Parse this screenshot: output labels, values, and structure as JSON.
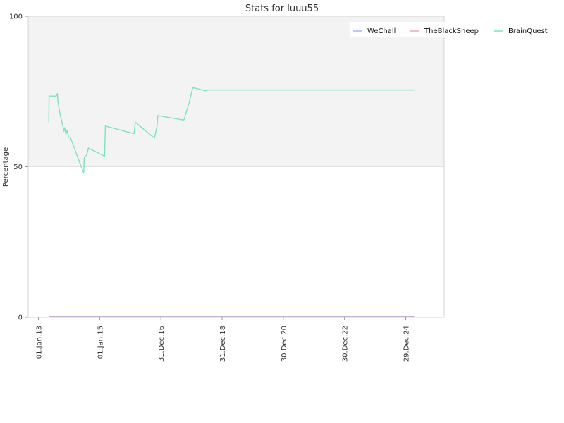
{
  "chart_data": {
    "type": "line",
    "title": "Stats for luuu55",
    "xlabel": "",
    "ylabel": "Percentage",
    "ylim": [
      0,
      100
    ],
    "xlim": [
      "2012-09-01",
      "2026-04-01"
    ],
    "y_ticks": [
      "0",
      "50",
      "100"
    ],
    "x_ticks": [
      {
        "label": "01.Jan.13",
        "date": "2013-01-01"
      },
      {
        "label": "01.Jan.15",
        "date": "2015-01-01"
      },
      {
        "label": "31.Dec.16",
        "date": "2016-12-31"
      },
      {
        "label": "31.Dec.18",
        "date": "2018-12-31"
      },
      {
        "label": "30.Dec.20",
        "date": "2020-12-30"
      },
      {
        "label": "30.Dec.22",
        "date": "2022-12-30"
      },
      {
        "label": "29.Dec.24",
        "date": "2024-12-29"
      }
    ],
    "grid": "shaded upper half",
    "legend_position": "top-right",
    "series": [
      {
        "name": "WeChall",
        "color": "#a6b8ea",
        "points": [
          [
            "2013-05-05",
            0.3
          ],
          [
            "2025-04-10",
            0.3
          ]
        ]
      },
      {
        "name": "TheBlackSheep",
        "color": "#e8a6c6",
        "points": [
          [
            "2013-05-05",
            0.2
          ],
          [
            "2025-04-10",
            0.2
          ]
        ]
      },
      {
        "name": "BrainQuest",
        "color": "#7fe3be",
        "points": [
          [
            "2013-05-05",
            64.8
          ],
          [
            "2013-05-08",
            73.5
          ],
          [
            "2013-08-01",
            73.5
          ],
          [
            "2013-08-15",
            74.3
          ],
          [
            "2013-08-20",
            72.0
          ],
          [
            "2013-09-15",
            67.5
          ],
          [
            "2013-10-15",
            64.0
          ],
          [
            "2013-11-01",
            61.8
          ],
          [
            "2013-11-10",
            63.0
          ],
          [
            "2013-11-25",
            60.8
          ],
          [
            "2013-12-10",
            62.2
          ],
          [
            "2013-12-25",
            60.0
          ],
          [
            "2014-01-20",
            59.5
          ],
          [
            "2014-06-15",
            48.5
          ],
          [
            "2014-06-25",
            48.0
          ],
          [
            "2014-07-01",
            53.0
          ],
          [
            "2014-08-01",
            54.0
          ],
          [
            "2014-08-20",
            56.2
          ],
          [
            "2015-03-01",
            53.5
          ],
          [
            "2015-03-10",
            63.5
          ],
          [
            "2016-02-15",
            61.0
          ],
          [
            "2016-03-01",
            64.8
          ],
          [
            "2016-10-15",
            59.5
          ],
          [
            "2016-11-15",
            63.5
          ],
          [
            "2016-11-25",
            67.0
          ],
          [
            "2017-10-01",
            65.5
          ],
          [
            "2017-12-01",
            71.0
          ],
          [
            "2018-01-15",
            76.3
          ],
          [
            "2018-06-20",
            75.2
          ],
          [
            "2018-07-01",
            75.5
          ],
          [
            "2025-04-10",
            75.5
          ]
        ]
      }
    ]
  }
}
